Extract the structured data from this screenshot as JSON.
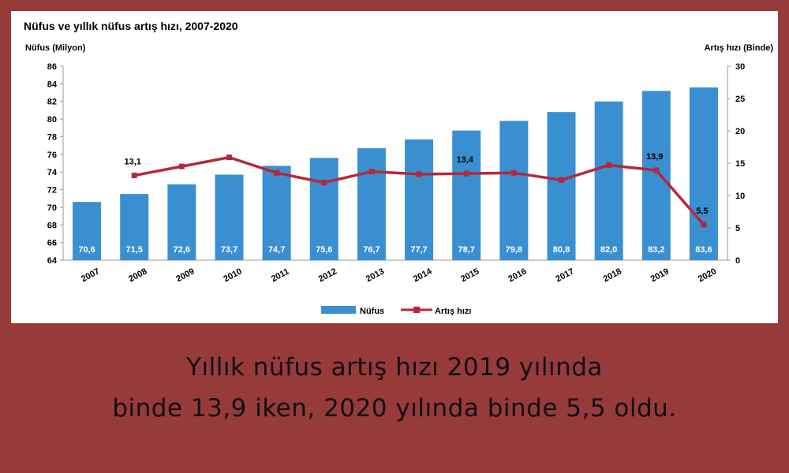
{
  "chart_data": {
    "type": "bar+line",
    "title": "Nüfus ve yıllık nüfus artış hızı, 2007-2020",
    "ylabel_left": "Nüfus (Milyon)",
    "ylabel_right": "Artış hızı (Binde)",
    "categories": [
      "2007",
      "2008",
      "2009",
      "2010",
      "2011",
      "2012",
      "2013",
      "2014",
      "2015",
      "2016",
      "2017",
      "2018",
      "2019",
      "2020"
    ],
    "left_axis": {
      "min": 64,
      "max": 86,
      "ticks": [
        64,
        66,
        68,
        70,
        72,
        74,
        76,
        78,
        80,
        82,
        84,
        86
      ]
    },
    "right_axis": {
      "min": 0,
      "max": 30,
      "ticks": [
        0,
        5,
        10,
        15,
        20,
        25,
        30
      ]
    },
    "series": [
      {
        "name": "Nüfus",
        "type": "bar",
        "axis": "left",
        "color": "#3a8fd0",
        "values": [
          70.6,
          71.5,
          72.6,
          73.7,
          74.7,
          75.6,
          76.7,
          77.7,
          78.7,
          79.8,
          80.8,
          82.0,
          83.2,
          83.6
        ],
        "labels": [
          "70,6",
          "71,5",
          "72,6",
          "73,7",
          "74,7",
          "75,6",
          "76,7",
          "77,7",
          "78,7",
          "79,8",
          "80,8",
          "82,0",
          "83,2",
          "83,6"
        ]
      },
      {
        "name": "Artış hızı",
        "type": "line",
        "axis": "right",
        "color": "#b5283b",
        "values": [
          null,
          13.1,
          14.5,
          15.9,
          13.5,
          12.0,
          13.7,
          13.3,
          13.4,
          13.5,
          12.4,
          14.7,
          13.9,
          5.5
        ],
        "point_labels": [
          {
            "category": "2008",
            "text": "13,1"
          },
          {
            "category": "2015",
            "text": "13,4"
          },
          {
            "category": "2019",
            "text": "13,9"
          },
          {
            "category": "2020",
            "text": "5,5"
          }
        ]
      }
    ],
    "legend_position": "bottom-center",
    "grid": false
  },
  "caption": {
    "line1": "Yıllık nüfus artış hızı 2019 yılında",
    "line2": "binde 13,9 iken, 2020 yılında binde 5,5 oldu."
  }
}
